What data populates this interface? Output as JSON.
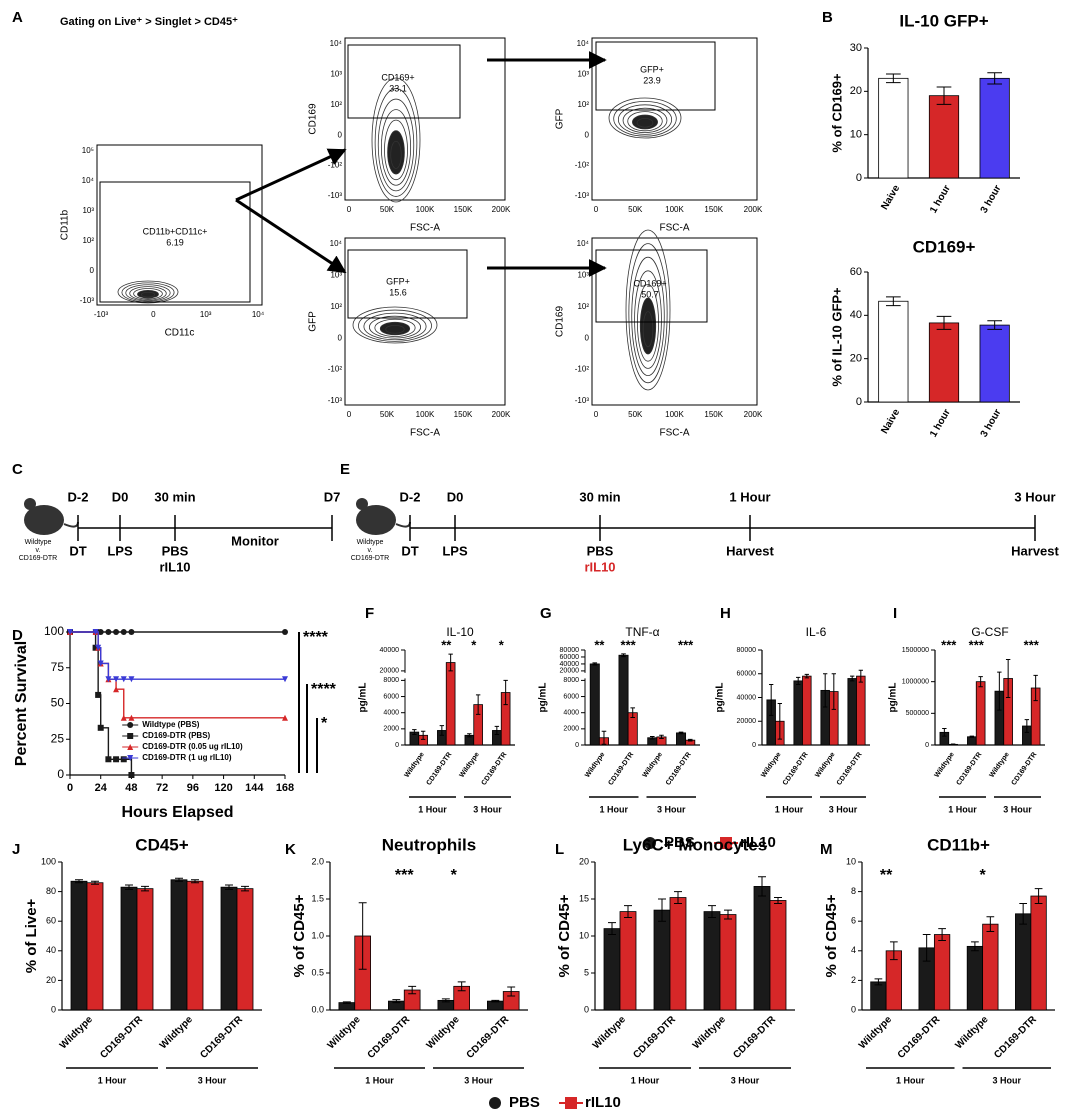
{
  "figure": {
    "panel_letters": [
      "A",
      "B",
      "C",
      "D",
      "E",
      "F",
      "G",
      "H",
      "I",
      "J",
      "K",
      "L",
      "M"
    ],
    "gating": "Gating on Live⁺ > Singlet > CD45⁺",
    "flow_plots": [
      {
        "xlabel": "CD11c",
        "ylabel": "CD11b",
        "gate": "CD11b+CD11c+",
        "gate_value": "6.19",
        "xticks": [
          "-10³",
          "0",
          "10³",
          "10⁴"
        ],
        "yticks": [
          "10⁵",
          "10⁴",
          "10³",
          "10²",
          "0",
          "-10³"
        ]
      },
      {
        "xlabel": "FSC-A",
        "ylabel": "CD169",
        "gate": "CD169+",
        "gate_value": "33.1",
        "xticks": [
          "0",
          "50K",
          "100K",
          "150K",
          "200K"
        ],
        "yticks": [
          "10⁴",
          "10³",
          "10²",
          "0",
          "-10²",
          "-10³"
        ]
      },
      {
        "xlabel": "FSC-A",
        "ylabel": "GFP",
        "gate": "GFP+",
        "gate_value": "23.9",
        "xticks": [
          "0",
          "50K",
          "100K",
          "150K",
          "200K"
        ],
        "yticks": [
          "10⁴",
          "10³",
          "10²",
          "0",
          "-10²",
          "-10³"
        ]
      },
      {
        "xlabel": "FSC-A",
        "ylabel": "GFP",
        "gate": "GFP+",
        "gate_value": "15.6",
        "xticks": [
          "0",
          "50K",
          "100K",
          "150K",
          "200K"
        ],
        "yticks": [
          "10⁴",
          "10³",
          "10²",
          "0",
          "-10²",
          "-10³"
        ]
      },
      {
        "xlabel": "FSC-A",
        "ylabel": "CD169",
        "gate": "CD169+",
        "gate_value": "50.7",
        "xticks": [
          "0",
          "50K",
          "100K",
          "150K",
          "200K"
        ],
        "yticks": [
          "10⁴",
          "10³",
          "10²",
          "0",
          "-10²",
          "-10³"
        ]
      }
    ],
    "timelines": [
      {
        "subject": [
          "Wildtype",
          "v.",
          "CD169-DTR"
        ],
        "steps": [
          {
            "above": "D-2",
            "below": [
              {
                "text": "DT"
              }
            ]
          },
          {
            "above": "D0",
            "below": [
              {
                "text": "LPS"
              }
            ]
          },
          {
            "above": "30 min",
            "below": [
              {
                "text": "PBS"
              },
              {
                "text": "rIL10"
              }
            ]
          },
          {
            "above": "D7"
          }
        ],
        "span_label": "Monitor"
      },
      {
        "subject": [
          "Wildtype",
          "v.",
          "CD169-DTR"
        ],
        "steps": [
          {
            "above": "D-2",
            "below": [
              {
                "text": "DT"
              }
            ]
          },
          {
            "above": "D0",
            "below": [
              {
                "text": "LPS"
              }
            ]
          },
          {
            "above": "30 min",
            "below": [
              {
                "text": "PBS"
              },
              {
                "text": "rIL10",
                "color": "#d62728"
              }
            ]
          },
          {
            "above": "1 Hour",
            "below": [
              {
                "text": "Harvest"
              }
            ]
          },
          {
            "above": "3 Hour",
            "below": [
              {
                "text": "Harvest"
              }
            ]
          }
        ]
      }
    ]
  },
  "chart_data": [
    {
      "type": "bar",
      "title": "IL-10 GFP+",
      "ylabel": "% of CD169+",
      "categories": [
        "Naive",
        "1 hour",
        "3 hour"
      ],
      "values": [
        23,
        19,
        23
      ],
      "errors": [
        1,
        2,
        1.3
      ],
      "colors": [
        "#ffffff",
        "#d62728",
        "#4b3cf0"
      ],
      "ylim": [
        0,
        30
      ],
      "yticks": [
        0,
        10,
        20,
        30
      ]
    },
    {
      "type": "bar",
      "title": "CD169+",
      "ylabel": "% of IL-10 GFP+",
      "categories": [
        "Naive",
        "1 hour",
        "3 hour"
      ],
      "values": [
        46.5,
        36.5,
        35.5
      ],
      "errors": [
        2,
        3,
        2
      ],
      "colors": [
        "#ffffff",
        "#d62728",
        "#4b3cf0"
      ],
      "ylim": [
        0,
        60
      ],
      "yticks": [
        0,
        20,
        40,
        60
      ]
    },
    {
      "type": "line",
      "step": true,
      "ylabel": "Percent Survival",
      "xlabel": "Hours Elapsed",
      "x": [
        0,
        20,
        22,
        24,
        30,
        36,
        42,
        48,
        168
      ],
      "series": [
        {
          "name": "Wildtype (PBS)",
          "color": "#1a1a1a",
          "marker": "circle",
          "values": [
            100,
            100,
            100,
            100,
            100,
            100,
            100,
            100,
            100
          ]
        },
        {
          "name": "CD169-DTR (PBS)",
          "color": "#1a1a1a",
          "marker": "square",
          "values": [
            100,
            89,
            56,
            33,
            11,
            11,
            11,
            0,
            null
          ]
        },
        {
          "name": "CD169-DTR (0.05 ug rIL10)",
          "color": "#d62728",
          "marker": "triangle",
          "values": [
            100,
            100,
            89,
            78,
            67,
            60,
            40,
            40,
            40
          ]
        },
        {
          "name": "CD169-DTR (1 ug rIL10)",
          "color": "#3a3ad6",
          "marker": "triangle-down",
          "values": [
            100,
            100,
            89,
            78,
            67,
            67,
            67,
            67,
            67
          ]
        }
      ],
      "xlim": [
        0,
        168
      ],
      "xticks": [
        0,
        24,
        48,
        72,
        96,
        120,
        144,
        168
      ],
      "ylim": [
        0,
        100
      ],
      "yticks": [
        0,
        25,
        50,
        75,
        100
      ],
      "legend": "lower center",
      "annotations": [
        "****",
        "****",
        "*"
      ]
    },
    {
      "type": "bar",
      "title": "IL-10",
      "ylabel": "pg/mL",
      "categories": [
        "Wildtype",
        "CD169-DTR",
        "Wildtype",
        "CD169-DTR"
      ],
      "groups": [
        "1 Hour",
        "3 Hour"
      ],
      "series": [
        {
          "name": "PBS",
          "color": "#1a1a1a",
          "marker": "circle",
          "values": [
            1600,
            1800,
            1200,
            1800
          ],
          "errors": [
            300,
            600,
            200,
            500
          ]
        },
        {
          "name": "rIL10",
          "color": "#d62728",
          "marker": "square",
          "values": [
            1200,
            28000,
            5000,
            6500
          ],
          "errors": [
            500,
            8000,
            1200,
            1500
          ]
        }
      ],
      "ylim": [
        0,
        40000
      ],
      "ybreak": [
        8000,
        20000
      ],
      "yticks": [
        0,
        2000,
        4000,
        6000,
        8000,
        20000,
        40000
      ],
      "annotations": [
        null,
        "**",
        "*",
        "*"
      ],
      "legend": "bottom"
    },
    {
      "type": "bar",
      "title": "TNF-α",
      "ylabel": "pg/mL",
      "categories": [
        "Wildtype",
        "CD169-DTR",
        "Wildtype",
        "CD169-DTR"
      ],
      "groups": [
        "1 Hour",
        "3 Hour"
      ],
      "series": [
        {
          "name": "PBS",
          "color": "#1a1a1a",
          "values": [
            40000,
            65000,
            900,
            1500
          ],
          "errors": [
            3000,
            4000,
            150,
            100
          ]
        },
        {
          "name": "rIL10",
          "color": "#d62728",
          "values": [
            900,
            4000,
            1000,
            600
          ],
          "errors": [
            800,
            600,
            200,
            100
          ]
        }
      ],
      "ylim": [
        0,
        80000
      ],
      "ybreak": [
        8000,
        20000
      ],
      "yticks": [
        0,
        2000,
        4000,
        6000,
        8000,
        20000,
        40000,
        60000,
        80000
      ],
      "annotations": [
        "**",
        "***",
        null,
        "***"
      ]
    },
    {
      "type": "bar",
      "title": "IL-6",
      "ylabel": "pg/mL",
      "categories": [
        "Wildtype",
        "CD169-DTR",
        "Wildtype",
        "CD169-DTR"
      ],
      "groups": [
        "1 Hour",
        "3 Hour"
      ],
      "series": [
        {
          "name": "PBS",
          "color": "#1a1a1a",
          "values": [
            38000,
            54000,
            46000,
            56000
          ],
          "errors": [
            13000,
            3000,
            14000,
            2000
          ]
        },
        {
          "name": "rIL10",
          "color": "#d62728",
          "values": [
            20000,
            58000,
            45000,
            58000
          ],
          "errors": [
            15000,
            1500,
            15000,
            5000
          ]
        }
      ],
      "ylim": [
        0,
        80000
      ],
      "yticks": [
        0,
        20000,
        40000,
        60000,
        80000
      ]
    },
    {
      "type": "bar",
      "title": "G-CSF",
      "ylabel": "pg/mL",
      "categories": [
        "Wildtype",
        "CD169-DTR",
        "Wildtype",
        "CD169-DTR"
      ],
      "groups": [
        "1 Hour",
        "3 Hour"
      ],
      "series": [
        {
          "name": "PBS",
          "color": "#1a1a1a",
          "values": [
            200000,
            130000,
            850000,
            300000
          ],
          "errors": [
            60000,
            10000,
            300000,
            100000
          ]
        },
        {
          "name": "rIL10",
          "color": "#d62728",
          "values": [
            10000,
            1000000,
            1050000,
            900000
          ],
          "errors": [
            5000,
            80000,
            300000,
            200000
          ]
        }
      ],
      "ylim": [
        0,
        1500000
      ],
      "yticks": [
        0,
        500000,
        1000000,
        1500000
      ],
      "annotations": [
        "***",
        "***",
        null,
        "***"
      ]
    },
    {
      "type": "bar",
      "title": "CD45+",
      "ylabel": "% of Live+",
      "categories": [
        "Wildtype",
        "CD169-DTR",
        "Wildtype",
        "CD169-DTR"
      ],
      "groups": [
        "1 Hour",
        "3 Hour"
      ],
      "series": [
        {
          "name": "PBS",
          "color": "#1a1a1a",
          "marker": "circle",
          "values": [
            87,
            83,
            88,
            83
          ],
          "errors": [
            1,
            1.5,
            1,
            1.5
          ]
        },
        {
          "name": "rIL10",
          "color": "#d62728",
          "marker": "square",
          "values": [
            86,
            82,
            87,
            82
          ],
          "errors": [
            1,
            1.5,
            1,
            1.5
          ]
        }
      ],
      "ylim": [
        0,
        100
      ],
      "yticks": [
        0,
        20,
        40,
        60,
        80,
        100
      ],
      "legend": "bottom"
    },
    {
      "type": "bar",
      "title": "Neutrophils",
      "ylabel": "% of CD45+",
      "categories": [
        "Wildtype",
        "CD169-DTR",
        "Wildtype",
        "CD169-DTR"
      ],
      "groups": [
        "1 Hour",
        "3 Hour"
      ],
      "series": [
        {
          "name": "PBS",
          "color": "#1a1a1a",
          "values": [
            0.1,
            0.12,
            0.13,
            0.12
          ],
          "errors": [
            0.01,
            0.02,
            0.02,
            0.01
          ]
        },
        {
          "name": "rIL10",
          "color": "#d62728",
          "values": [
            1.0,
            0.27,
            0.32,
            0.25
          ],
          "errors": [
            0.45,
            0.05,
            0.06,
            0.06
          ]
        }
      ],
      "ylim": [
        0,
        2
      ],
      "yticks": [
        {
          "value": 0,
          "label": "0.0"
        },
        0.5,
        {
          "value": 1,
          "label": "1.0"
        },
        1.5,
        {
          "value": 2,
          "label": "2.0"
        }
      ],
      "annotations": [
        null,
        "***",
        "*",
        null
      ]
    },
    {
      "type": "bar",
      "title": "Ly6C+ Monocytes",
      "ylabel": "% of CD45+",
      "categories": [
        "Wildtype",
        "CD169-DTR",
        "Wildtype",
        "CD169-DTR"
      ],
      "groups": [
        "1 Hour",
        "3 Hour"
      ],
      "series": [
        {
          "name": "PBS",
          "color": "#1a1a1a",
          "values": [
            11,
            13.5,
            13.3,
            16.7
          ],
          "errors": [
            0.8,
            1.5,
            0.8,
            1.3
          ]
        },
        {
          "name": "rIL10",
          "color": "#d62728",
          "values": [
            13.3,
            15.2,
            12.9,
            14.8
          ],
          "errors": [
            0.8,
            0.8,
            0.6,
            0.4
          ]
        }
      ],
      "ylim": [
        0,
        20
      ],
      "yticks": [
        0,
        5,
        10,
        15,
        20
      ]
    },
    {
      "type": "bar",
      "title": "CD11b+",
      "ylabel": "% of CD45+",
      "categories": [
        "Wildtype",
        "CD169-DTR",
        "Wildtype",
        "CD169-DTR"
      ],
      "groups": [
        "1 Hour",
        "3 Hour"
      ],
      "series": [
        {
          "name": "PBS",
          "color": "#1a1a1a",
          "values": [
            1.9,
            4.2,
            4.3,
            6.5
          ],
          "errors": [
            0.2,
            0.9,
            0.3,
            0.7
          ]
        },
        {
          "name": "rIL10",
          "color": "#d62728",
          "values": [
            4.0,
            5.1,
            5.8,
            7.7
          ],
          "errors": [
            0.6,
            0.4,
            0.5,
            0.5
          ]
        }
      ],
      "ylim": [
        0,
        10
      ],
      "yticks": [
        0,
        2,
        4,
        6,
        8,
        10
      ],
      "annotations": [
        "**",
        null,
        "*",
        null
      ]
    }
  ]
}
